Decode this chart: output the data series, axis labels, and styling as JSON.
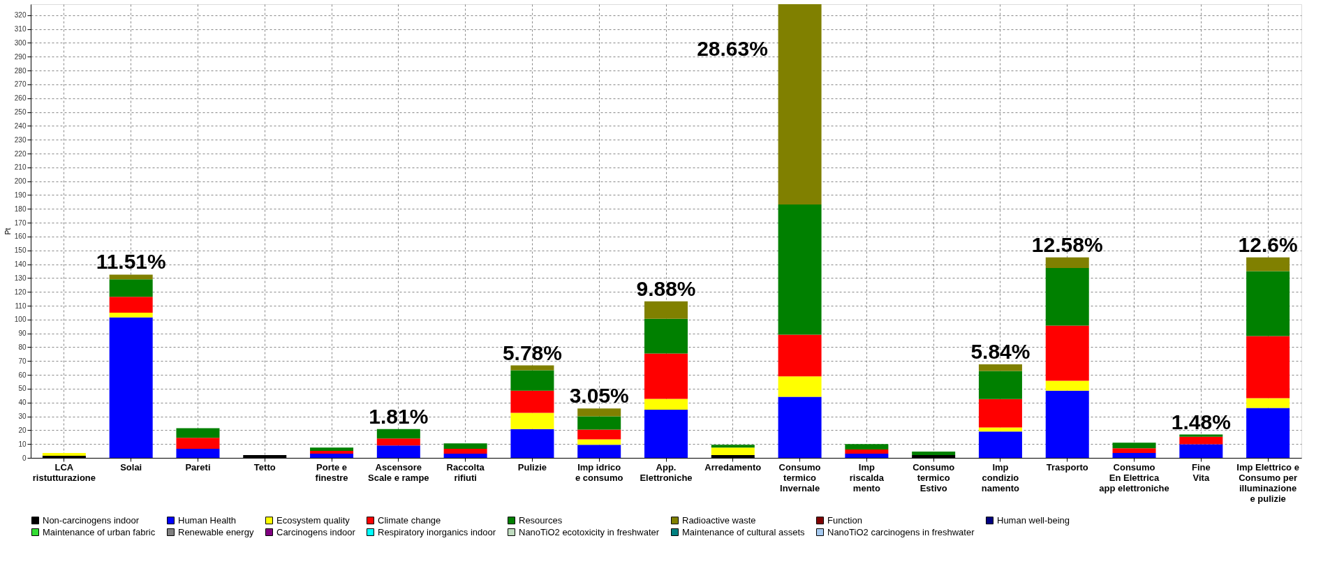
{
  "chart_data": {
    "type": "bar",
    "stacked": true,
    "ylabel": "Pt",
    "categories": [
      "LCA\nristutturazione",
      "Solai",
      "Pareti",
      "Tetto",
      "Porte e\nfinestre",
      "Ascensore\nScale e rampe",
      "Raccolta\nrifiuti",
      "Pulizie",
      "Imp idrico\ne consumo",
      "App.\nElettroniche",
      "Arredamento",
      "Consumo\ntermico\nInvernale",
      "Imp\nriscalda\nmento",
      "Consumo\ntermico\nEstivo",
      "Imp\ncondizio\nnamento",
      "Trasporto",
      "Consumo\nEn Elettrica\napp elettroniche",
      "Fine\nVita",
      "Imp Elettrico e\nConsumo per\nilluminazione\ne pulizie"
    ],
    "series": [
      {
        "name": "Non-carcinogens indoor",
        "color": "#000000",
        "values": [
          1.5,
          0,
          0,
          2,
          0,
          0,
          0,
          0,
          0,
          0,
          2,
          0,
          0,
          2,
          0,
          0,
          0,
          0,
          0
        ]
      },
      {
        "name": "Human Health",
        "color": "#0000ff",
        "values": [
          0,
          101.5,
          6.5,
          0,
          3,
          9,
          3,
          20.8,
          9.4,
          34.8,
          0,
          44.2,
          3,
          0,
          19,
          48.6,
          3.5,
          9.8,
          36.1
        ]
      },
      {
        "name": "Ecosystem quality",
        "color": "#ffff00",
        "values": [
          2,
          3.5,
          0,
          0,
          0,
          0,
          0,
          11.8,
          4,
          7.9,
          5.5,
          14.7,
          0,
          0,
          2.9,
          7.2,
          0,
          0,
          7
        ]
      },
      {
        "name": "Climate change",
        "color": "#ff0000",
        "values": [
          0,
          11.5,
          8,
          0,
          2,
          5,
          3.5,
          16,
          7,
          32.8,
          0,
          30.2,
          3,
          0,
          20.6,
          39.8,
          3.5,
          5.5,
          44.9
        ]
      },
      {
        "name": "Resources",
        "color": "#008000",
        "values": [
          0,
          12.5,
          7,
          0,
          2.5,
          6.8,
          4,
          14.7,
          9.6,
          25,
          2,
          94.1,
          4,
          2.5,
          20.3,
          41.6,
          4,
          1.6,
          47
        ]
      },
      {
        "name": "Radioactive waste",
        "color": "#808000",
        "values": [
          0,
          3.5,
          0,
          0,
          0,
          0,
          0,
          3.5,
          5.7,
          12.7,
          0,
          144.8,
          0,
          0,
          4.8,
          7.7,
          0,
          0,
          9.9
        ]
      },
      {
        "name": "Function",
        "color": "#800000",
        "values": [
          0,
          0,
          0,
          0,
          0,
          0,
          0,
          0,
          0,
          0,
          0,
          0,
          0,
          0,
          0,
          0,
          0,
          0,
          0
        ]
      },
      {
        "name": "Human well-being",
        "color": "#000080",
        "values": [
          0,
          0,
          0,
          0,
          0,
          0,
          0,
          0,
          0,
          0,
          0,
          0,
          0,
          0,
          0,
          0,
          0,
          0,
          0
        ]
      },
      {
        "name": "Maintenance of urban fabric",
        "color": "#33dd33",
        "values": [
          0,
          0,
          0,
          0,
          0,
          0,
          0,
          0,
          0,
          0,
          0,
          0,
          0,
          0,
          0,
          0,
          0,
          0,
          0
        ]
      },
      {
        "name": "Renewable energy",
        "color": "#808080",
        "values": [
          0,
          0,
          0,
          0,
          0,
          0,
          0,
          0,
          0,
          0,
          0,
          0,
          0,
          0,
          0,
          0,
          0,
          0,
          0
        ]
      },
      {
        "name": "Carcinogens indoor",
        "color": "#800080",
        "values": [
          0,
          0,
          0,
          0,
          0,
          0,
          0,
          0,
          0,
          0,
          0,
          0,
          0,
          0,
          0,
          0,
          0,
          0,
          0
        ]
      },
      {
        "name": "Respiratory inorganics indoor",
        "color": "#00ffff",
        "values": [
          0,
          0,
          0,
          0,
          0,
          0,
          0,
          0,
          0,
          0,
          0,
          0,
          0,
          0,
          0,
          0,
          0,
          0,
          0
        ]
      },
      {
        "name": "NanoTiO2 ecotoxicity in freshwater",
        "color": "#c0dcc0",
        "values": [
          0,
          0,
          0,
          0,
          0,
          0,
          0,
          0,
          0,
          0,
          0,
          0,
          0,
          0,
          0,
          0,
          0,
          0,
          0
        ]
      },
      {
        "name": "Maintenance of cultural assets",
        "color": "#008080",
        "values": [
          0,
          0,
          0,
          0,
          0,
          0,
          0,
          0,
          0,
          0,
          0,
          0,
          0,
          0,
          0,
          0,
          0,
          0,
          0
        ]
      },
      {
        "name": "NanoTiO2 carcinogens in freshwater",
        "color": "#a6caf0",
        "values": [
          0,
          0,
          0,
          0,
          0,
          0,
          0,
          0,
          0,
          0,
          0,
          0,
          0,
          0,
          0,
          0,
          0,
          0,
          0
        ]
      }
    ],
    "ylim": [
      0,
      328
    ],
    "yticks": [
      0,
      10,
      20,
      30,
      40,
      50,
      60,
      70,
      80,
      90,
      100,
      110,
      120,
      130,
      140,
      150,
      160,
      170,
      180,
      190,
      200,
      210,
      220,
      230,
      240,
      250,
      260,
      270,
      280,
      290,
      300,
      310,
      320
    ],
    "grid": true,
    "legend": "bottom",
    "annotations": [
      {
        "text": "11.51%",
        "x": "Solai",
        "y": 132.5
      },
      {
        "text": "1.81%",
        "x": "Ascensore\nScale e rampe",
        "y": 20.8
      },
      {
        "text": "5.78%",
        "x": "Pulizie",
        "y": 66.8
      },
      {
        "text": "3.05%",
        "x": "Imp idrico\ne consumo",
        "y": 35.7
      },
      {
        "text": "9.88%",
        "x": "App.\nElettroniche",
        "y": 113.2
      },
      "28.63%",
      {
        "text": "5.84%",
        "x": "Imp\ncondizio\nnamento",
        "y": 67.6
      },
      {
        "text": "12.58%",
        "x": "Trasporto",
        "y": 144.9
      },
      {
        "text": "1.48%",
        "x": "Fine\nVita",
        "y": 16.9
      },
      {
        "text": "12.6%",
        "x": "Imp Elettrico e\nConsumo per\nilluminazione\ne pulizie",
        "y": 144.9
      }
    ]
  }
}
